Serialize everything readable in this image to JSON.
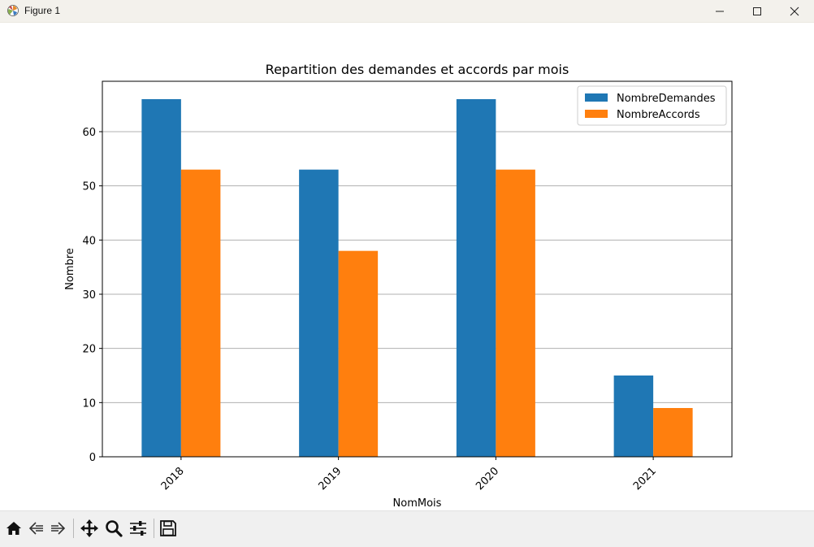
{
  "window": {
    "title": "Figure 1",
    "icons": [
      "matplotlib-icon",
      "minimize-icon",
      "maximize-icon",
      "close-icon"
    ]
  },
  "toolbar": {
    "tools": [
      "home-icon",
      "back-arrow-icon",
      "forward-arrow-icon",
      "pan-icon",
      "zoom-icon",
      "configure-subplots-icon",
      "save-icon"
    ]
  },
  "chart_data": {
    "type": "bar",
    "title": "Repartition des demandes et accords par mois",
    "xlabel": "NomMois",
    "ylabel": "Nombre",
    "categories": [
      "2018",
      "2019",
      "2020",
      "2021"
    ],
    "series": [
      {
        "name": "NombreDemandes",
        "color": "#1f77b4",
        "values": [
          66,
          53,
          66,
          15
        ]
      },
      {
        "name": "NombreAccords",
        "color": "#ff7f0e",
        "values": [
          53,
          38,
          53,
          9
        ]
      }
    ],
    "ylim": [
      0,
      69.3
    ],
    "yticks": [
      0,
      10,
      20,
      30,
      40,
      50,
      60
    ],
    "ytick_labels": [
      "0",
      "10",
      "20",
      "30",
      "40",
      "50",
      "60"
    ],
    "xtick_rotation": -45,
    "grid": "y",
    "legend_position": "upper right"
  }
}
